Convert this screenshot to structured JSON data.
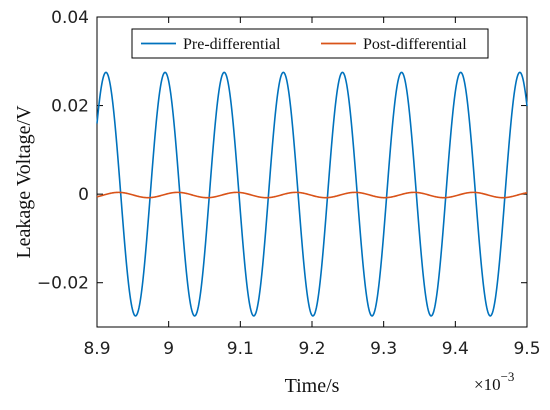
{
  "chart_data": {
    "type": "line",
    "xlabel": "Time/s",
    "ylabel": "Leakage Voltage/V",
    "x_multiplier_label": "×10",
    "x_multiplier_exponent": "−3",
    "xlim": [
      8.9,
      9.5
    ],
    "ylim": [
      -0.03,
      0.04
    ],
    "x_ticks": [
      8.9,
      9.0,
      9.1,
      9.2,
      9.3,
      9.4,
      9.5
    ],
    "x_tick_labels": [
      "8.9",
      "9",
      "9.1",
      "9.2",
      "9.3",
      "9.4",
      "9.5"
    ],
    "y_ticks": [
      -0.02,
      0,
      0.02,
      0.04
    ],
    "y_tick_labels": [
      "−0.02",
      "0",
      "0.02",
      "0.04"
    ],
    "grid": false,
    "legend_position": "top",
    "series": [
      {
        "name": "Pre-differential",
        "color": "#0072BD",
        "waveform": "sine",
        "amplitude": 0.0275,
        "offset": 0,
        "period": 0.0825,
        "first_peak_x": 8.9125,
        "x_start": 8.9,
        "x_end": 9.5
      },
      {
        "name": "Post-differential",
        "color": "#D95319",
        "waveform": "sine",
        "amplitude": 0.0006,
        "offset": -0.0002,
        "period": 0.0825,
        "first_peak_x": 8.93,
        "x_start": 8.9,
        "x_end": 9.5
      }
    ]
  }
}
